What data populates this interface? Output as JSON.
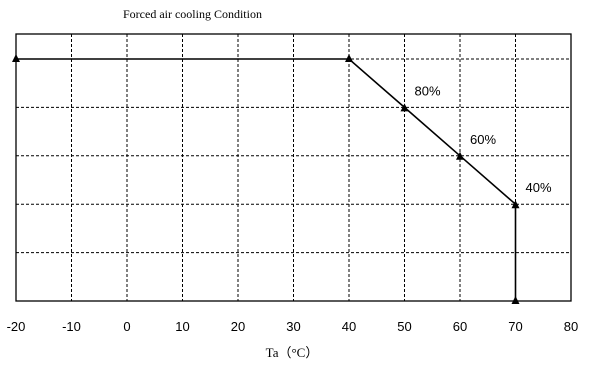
{
  "chart_data": {
    "type": "line",
    "title": "Forced air cooling Condition",
    "xlabel": "Ta（°C）",
    "ylabel": "",
    "xlim": [
      -20,
      80
    ],
    "ylim": [
      0,
      100
    ],
    "x_ticks": [
      "-20",
      "-10",
      "0",
      "10",
      "20",
      "30",
      "40",
      "50",
      "60",
      "70",
      "80"
    ],
    "grid": true,
    "series": [
      {
        "points": [
          {
            "x": -20,
            "y": 100
          },
          {
            "x": 40,
            "y": 100
          },
          {
            "x": 50,
            "y": 80
          },
          {
            "x": 60,
            "y": 60
          },
          {
            "x": 70,
            "y": 40
          },
          {
            "x": 70,
            "y": 0
          }
        ]
      }
    ],
    "data_labels": [
      {
        "x": 50,
        "y": 80,
        "text": "80%"
      },
      {
        "x": 60,
        "y": 60,
        "text": "60%"
      },
      {
        "x": 70,
        "y": 40,
        "text": "40%"
      }
    ]
  }
}
